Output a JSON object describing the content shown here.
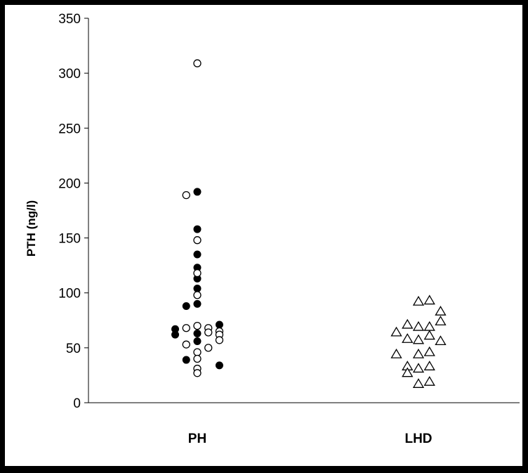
{
  "chart_data": {
    "type": "scatter",
    "title": "",
    "xlabel": "",
    "ylabel": "PTH (ng/l)",
    "ylim": [
      0,
      350
    ],
    "yticks": [
      0,
      50,
      100,
      150,
      200,
      250,
      300,
      350
    ],
    "ytick_labels": [
      "0",
      "50",
      "100",
      "150",
      "200",
      "250",
      "300",
      "350"
    ],
    "categories": [
      "PH",
      "LHD"
    ],
    "grid": false,
    "legend": "none",
    "series": [
      {
        "category": "PH",
        "marker": "filled-circle",
        "color": "#000000",
        "points": [
          {
            "x": -0.22,
            "y": 67
          },
          {
            "x": -0.22,
            "y": 62
          },
          {
            "x": -0.11,
            "y": 88
          },
          {
            "x": -0.11,
            "y": 39
          },
          {
            "x": 0,
            "y": 192
          },
          {
            "x": 0,
            "y": 158
          },
          {
            "x": 0,
            "y": 135
          },
          {
            "x": 0,
            "y": 123
          },
          {
            "x": 0,
            "y": 113
          },
          {
            "x": 0,
            "y": 104
          },
          {
            "x": 0,
            "y": 90
          },
          {
            "x": 0,
            "y": 63
          },
          {
            "x": 0,
            "y": 56
          },
          {
            "x": 0.22,
            "y": 71
          },
          {
            "x": 0.22,
            "y": 34
          }
        ]
      },
      {
        "category": "PH",
        "marker": "open-circle",
        "color": "#000000",
        "points": [
          {
            "x": 0,
            "y": 309
          },
          {
            "x": -0.11,
            "y": 189
          },
          {
            "x": 0,
            "y": 148
          },
          {
            "x": 0,
            "y": 118
          },
          {
            "x": 0,
            "y": 98
          },
          {
            "x": -0.11,
            "y": 68
          },
          {
            "x": -0.11,
            "y": 53
          },
          {
            "x": 0,
            "y": 70
          },
          {
            "x": 0,
            "y": 46
          },
          {
            "x": 0,
            "y": 40
          },
          {
            "x": 0,
            "y": 31
          },
          {
            "x": 0,
            "y": 27
          },
          {
            "x": 0.11,
            "y": 68
          },
          {
            "x": 0.11,
            "y": 64
          },
          {
            "x": 0.11,
            "y": 50
          },
          {
            "x": 0.22,
            "y": 65
          },
          {
            "x": 0.22,
            "y": 62
          },
          {
            "x": 0.22,
            "y": 57
          }
        ]
      },
      {
        "category": "LHD",
        "marker": "open-triangle",
        "color": "#000000",
        "points": [
          {
            "x": 0,
            "y": 92
          },
          {
            "x": 0.11,
            "y": 93
          },
          {
            "x": 0.22,
            "y": 83
          },
          {
            "x": 0.22,
            "y": 74
          },
          {
            "x": -0.11,
            "y": 71
          },
          {
            "x": 0,
            "y": 69
          },
          {
            "x": 0.11,
            "y": 69
          },
          {
            "x": -0.22,
            "y": 64
          },
          {
            "x": 0.11,
            "y": 61
          },
          {
            "x": -0.11,
            "y": 58
          },
          {
            "x": 0,
            "y": 57
          },
          {
            "x": 0.22,
            "y": 56
          },
          {
            "x": 0.11,
            "y": 46
          },
          {
            "x": -0.22,
            "y": 44
          },
          {
            "x": 0,
            "y": 44
          },
          {
            "x": -0.11,
            "y": 33
          },
          {
            "x": 0.11,
            "y": 33
          },
          {
            "x": 0,
            "y": 31
          },
          {
            "x": -0.11,
            "y": 27
          },
          {
            "x": 0.11,
            "y": 19
          },
          {
            "x": 0,
            "y": 17
          }
        ]
      }
    ]
  }
}
